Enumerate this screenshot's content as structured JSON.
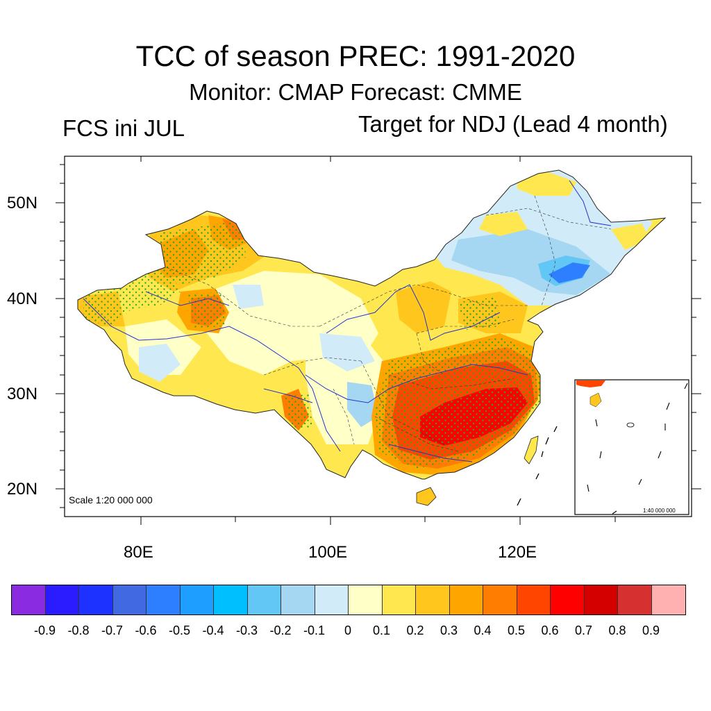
{
  "title": "TCC of season PREC: 1991-2020",
  "subtitle": "Monitor: CMAP   Forecast: CMME",
  "left_label": "FCS ini JUL",
  "right_label": "Target for NDJ (Lead 4 month)",
  "map": {
    "lat_labels": [
      "50N",
      "40N",
      "30N",
      "20N"
    ],
    "lon_labels": [
      "80E",
      "100E",
      "120E"
    ],
    "scale_main": "Scale 1:20 000 000",
    "scale_inset": "1:40 000 000"
  },
  "colorbar": {
    "colors": [
      "#8a2be2",
      "#2b1bff",
      "#1e32ff",
      "#4169e1",
      "#2e7fff",
      "#1e9fff",
      "#00bfff",
      "#63c7f5",
      "#a5d6f2",
      "#d2ebf8",
      "#ffffc8",
      "#ffe84f",
      "#ffc61e",
      "#ffa500",
      "#ff7d00",
      "#ff4500",
      "#ff0000",
      "#d40000",
      "#d73030",
      "#ffb0b0"
    ],
    "labels": [
      "-0.9",
      "-0.8",
      "-0.7",
      "-0.6",
      "-0.5",
      "-0.4",
      "-0.3",
      "-0.2",
      "-0.1",
      "0",
      "0.1",
      "0.2",
      "0.3",
      "0.4",
      "0.5",
      "0.6",
      "0.7",
      "0.8",
      "0.9"
    ]
  }
}
